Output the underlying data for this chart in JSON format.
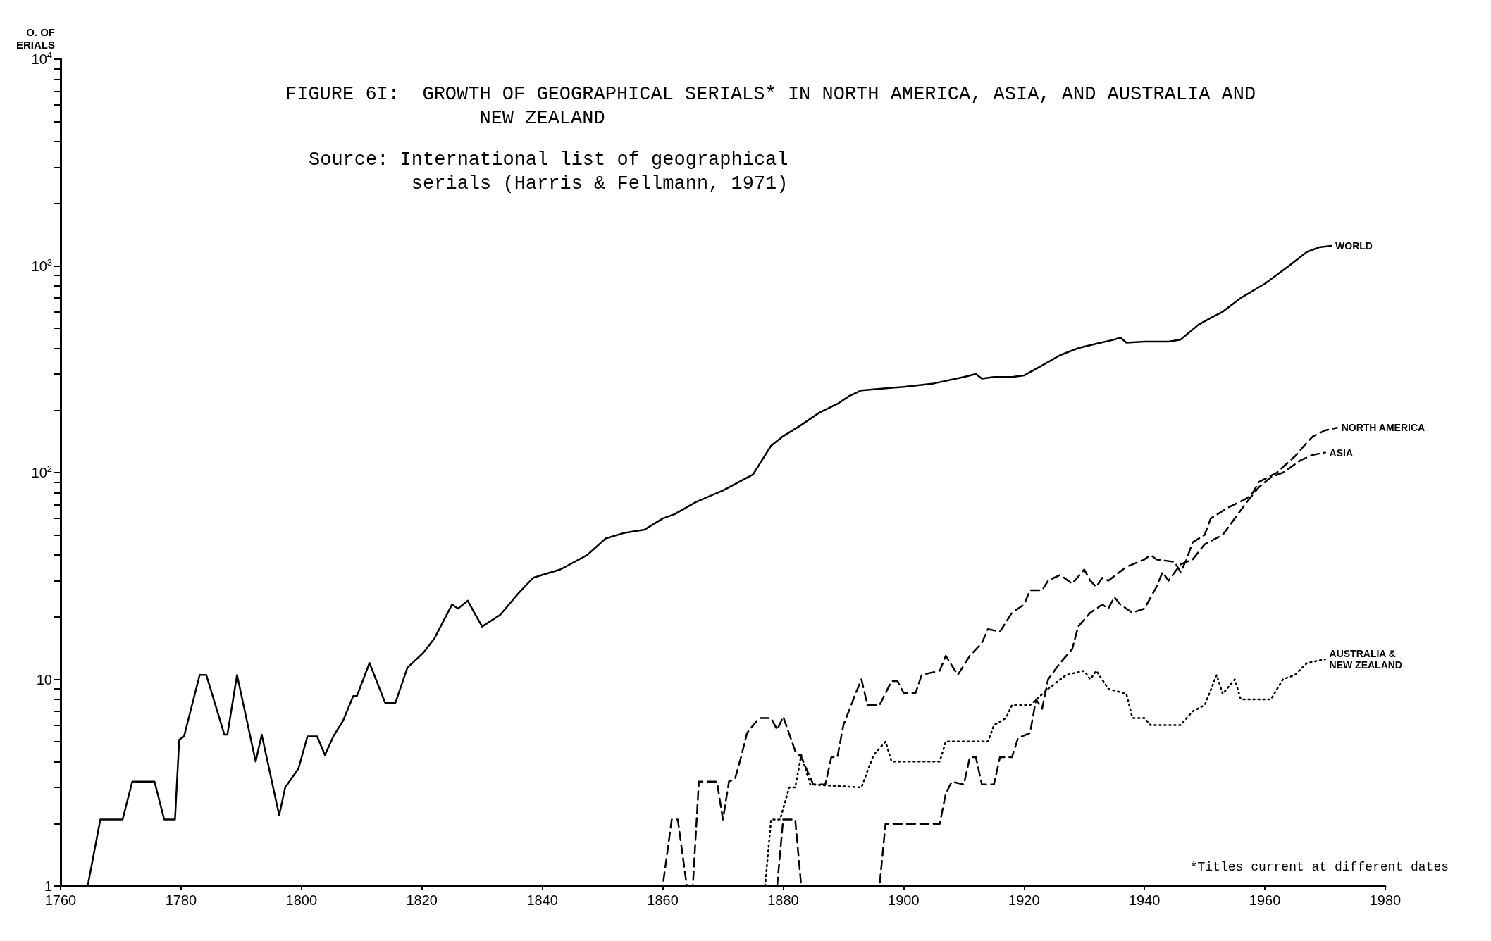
{
  "chart_data": {
    "type": "line",
    "title": "FIGURE 6I:  GROWTH OF GEOGRAPHICAL SERIALS* IN NORTH AMERICA, ASIA, AND AUSTRALIA AND NEW ZEALAND",
    "ylabel": "O. OF ERIALS",
    "annotations": [
      "Source: International list of geographical serials (Harris & Fellmann, 1971)",
      "*Titles current at different dates"
    ],
    "log": "y",
    "legend": false,
    "grid": false,
    "marker": "none",
    "xlim": [
      1760,
      1980
    ],
    "xticks": [
      1760,
      1780,
      1800,
      1820,
      1840,
      1860,
      1880,
      1900,
      1920,
      1940,
      1960,
      1980
    ],
    "ylim": [
      1,
      10000
    ],
    "yticks": [
      1,
      {
        "value": 2,
        "label": null
      },
      {
        "value": 3,
        "label": null
      },
      {
        "value": 4,
        "label": null
      },
      {
        "value": 5,
        "label": null
      },
      {
        "value": 6,
        "label": null
      },
      {
        "value": 7,
        "label": null
      },
      {
        "value": 8,
        "label": null
      },
      {
        "value": 9,
        "label": null
      },
      10,
      {
        "value": 20,
        "label": null
      },
      {
        "value": 30,
        "label": null
      },
      {
        "value": 40,
        "label": null
      },
      {
        "value": 50,
        "label": null
      },
      {
        "value": 60,
        "label": null
      },
      {
        "value": 70,
        "label": null
      },
      {
        "value": 80,
        "label": null
      },
      {
        "value": 90,
        "label": null
      },
      {
        "value": 100,
        "label": "10$^{2}$"
      },
      {
        "value": 200,
        "label": null
      },
      {
        "value": 300,
        "label": null
      },
      {
        "value": 400,
        "label": null
      },
      {
        "value": 500,
        "label": null
      },
      {
        "value": 600,
        "label": null
      },
      {
        "value": 700,
        "label": null
      },
      {
        "value": 800,
        "label": null
      },
      {
        "value": 900,
        "label": null
      },
      {
        "value": 1000,
        "label": "10$^{3}$"
      },
      {
        "value": 2000,
        "label": null
      },
      {
        "value": 3000,
        "label": null
      },
      {
        "value": 4000,
        "label": null
      },
      {
        "value": 5000,
        "label": null
      },
      {
        "value": 6000,
        "label": null
      },
      {
        "value": 7000,
        "label": null
      },
      {
        "value": 8000,
        "label": null
      },
      {
        "value": 9000,
        "label": null
      },
      {
        "value": 10000,
        "label": "10$^{4}$"
      }
    ],
    "series": [
      {
        "name": "WORLD",
        "color": "#000000",
        "line_style": "solid",
        "x": [
          1764.5,
          1766.6,
          1770.3,
          1771.9,
          1775.6,
          1777.2,
          1779,
          1779.7,
          1780.5,
          1783.1,
          1784.2,
          1787.2,
          1787.7,
          1789.3,
          1792.4,
          1793.4,
          1796.3,
          1797.3,
          1799.5,
          1801,
          1802.6,
          1803.9,
          1805.3,
          1806.9,
          1808.6,
          1809.2,
          1811.3,
          1813.9,
          1815.6,
          1817.6,
          1820.2,
          1822.1,
          1825,
          1826,
          1827.6,
          1830,
          1833,
          1836,
          1838.5,
          1840,
          1843,
          1847.5,
          1850.5,
          1853.5,
          1857,
          1860,
          1862,
          1865.5,
          1870,
          1875,
          1878,
          1880,
          1883,
          1886,
          1889,
          1891,
          1893,
          1900,
          1905,
          1910,
          1912,
          1913,
          1915,
          1918,
          1920,
          1923,
          1926,
          1929,
          1932,
          1935,
          1936,
          1937,
          1940,
          1944,
          1946,
          1949,
          1951,
          1953,
          1956,
          1960,
          1964,
          1967,
          1969,
          1971
        ],
        "values": [
          1,
          2.1,
          2.1,
          3.2,
          3.2,
          2.1,
          2.1,
          5.1,
          5.3,
          10.5,
          10.5,
          5.4,
          5.4,
          10.5,
          4,
          5.4,
          2.2,
          3,
          3.7,
          5.3,
          5.3,
          4.3,
          5.3,
          6.3,
          8.3,
          8.3,
          12,
          7.7,
          7.7,
          11.4,
          13.4,
          15.8,
          23,
          22,
          24,
          18,
          20.5,
          26,
          31,
          32,
          34,
          40,
          48,
          51,
          53,
          60,
          63,
          72,
          82,
          98,
          135,
          150,
          170,
          195,
          215,
          235,
          250,
          260,
          270,
          290,
          300,
          285,
          290,
          290,
          295,
          330,
          370,
          400,
          420,
          440,
          450,
          425,
          430,
          430,
          440,
          520,
          560,
          600,
          700,
          820,
          1000,
          1170,
          1230,
          1250
        ]
      },
      {
        "name": "NORTH AMERICA",
        "color": "#000000",
        "line_style": "dashed",
        "x": [
          1852,
          1860,
          1861.5,
          1862.5,
          1864,
          1865,
          1866,
          1869,
          1870,
          1871,
          1872,
          1873,
          1874,
          1876,
          1878,
          1879,
          1880,
          1882,
          1883,
          1885,
          1887,
          1888,
          1889,
          1890,
          1892,
          1893,
          1894,
          1896,
          1898,
          1899,
          1900,
          1902,
          1903,
          1906,
          1907,
          1909,
          1911,
          1913,
          1914,
          1916,
          1918,
          1920,
          1921,
          1923,
          1924,
          1926,
          1928,
          1930,
          1931,
          1932,
          1933,
          1934,
          1937,
          1940,
          1941,
          1942,
          1945,
          1946,
          1947,
          1948,
          1950,
          1951,
          1954,
          1957,
          1958,
          1959,
          1962,
          1965,
          1967,
          1968,
          1970,
          1972
        ],
        "values": [
          1,
          1,
          2.1,
          2.1,
          1,
          1,
          3.2,
          3.2,
          2.1,
          3.2,
          3.3,
          4.2,
          5.5,
          6.5,
          6.5,
          5.7,
          6.6,
          4.5,
          4.2,
          3.1,
          3.1,
          4.2,
          4.2,
          6,
          8.5,
          10,
          7.5,
          7.5,
          9.8,
          9.8,
          8.6,
          8.6,
          10.5,
          11,
          13,
          10.5,
          13,
          15,
          17.5,
          17,
          21,
          23,
          27,
          27,
          30,
          32,
          29,
          34,
          30,
          28,
          31,
          30,
          35,
          38,
          40,
          38,
          37,
          33,
          38,
          46,
          50,
          60,
          68,
          75,
          80,
          90,
          100,
          120,
          140,
          150,
          160,
          165
        ]
      },
      {
        "name": "ASIA",
        "color": "#000000",
        "line_style": "dashed",
        "x": [
          1879,
          1880,
          1882,
          1883,
          1896,
          1897,
          1906,
          1907,
          1908,
          1910,
          1911,
          1912,
          1913,
          1915,
          1916,
          1918,
          1919,
          1921,
          1922,
          1923,
          1924,
          1926,
          1928,
          1929,
          1931,
          1933,
          1934,
          1935,
          1936,
          1938,
          1940,
          1942,
          1943,
          1944,
          1946,
          1948,
          1950,
          1953,
          1955,
          1957,
          1959,
          1961,
          1963,
          1966,
          1968,
          1970
        ],
        "values": [
          1,
          2.1,
          2.1,
          1,
          1,
          2,
          2,
          2.8,
          3.2,
          3.1,
          4.2,
          4.2,
          3.1,
          3.1,
          4.2,
          4.2,
          5.2,
          5.5,
          8,
          7.2,
          10,
          12,
          14,
          18,
          21,
          23,
          22,
          25,
          23,
          21,
          22,
          28,
          33,
          30,
          36,
          38,
          45,
          50,
          60,
          72,
          85,
          95,
          100,
          115,
          122,
          125
        ]
      },
      {
        "name": "AUSTRALIA & NEW ZEALAND",
        "color": "#000000",
        "line_style": "dotted",
        "x": [
          1877,
          1878,
          1879.5,
          1881,
          1882,
          1883,
          1884.5,
          1893,
          1895,
          1897,
          1898,
          1906,
          1907,
          1914,
          1915,
          1917,
          1918,
          1921,
          1924,
          1927,
          1930,
          1931,
          1932,
          1934,
          1937,
          1938,
          1940,
          1941,
          1946,
          1948,
          1950,
          1952,
          1953,
          1955,
          1956,
          1961,
          1963,
          1965,
          1967,
          1970
        ],
        "values": [
          1,
          2.1,
          2.1,
          3,
          3,
          4.3,
          3.1,
          3,
          4.3,
          5,
          4,
          4,
          5,
          5,
          6,
          6.5,
          7.5,
          7.5,
          9,
          10.5,
          11,
          10,
          11,
          9,
          8.5,
          6.5,
          6.5,
          6,
          6,
          7,
          7.5,
          10.5,
          8.5,
          10,
          8,
          8,
          10,
          10.5,
          12,
          12.5
        ]
      }
    ]
  }
}
